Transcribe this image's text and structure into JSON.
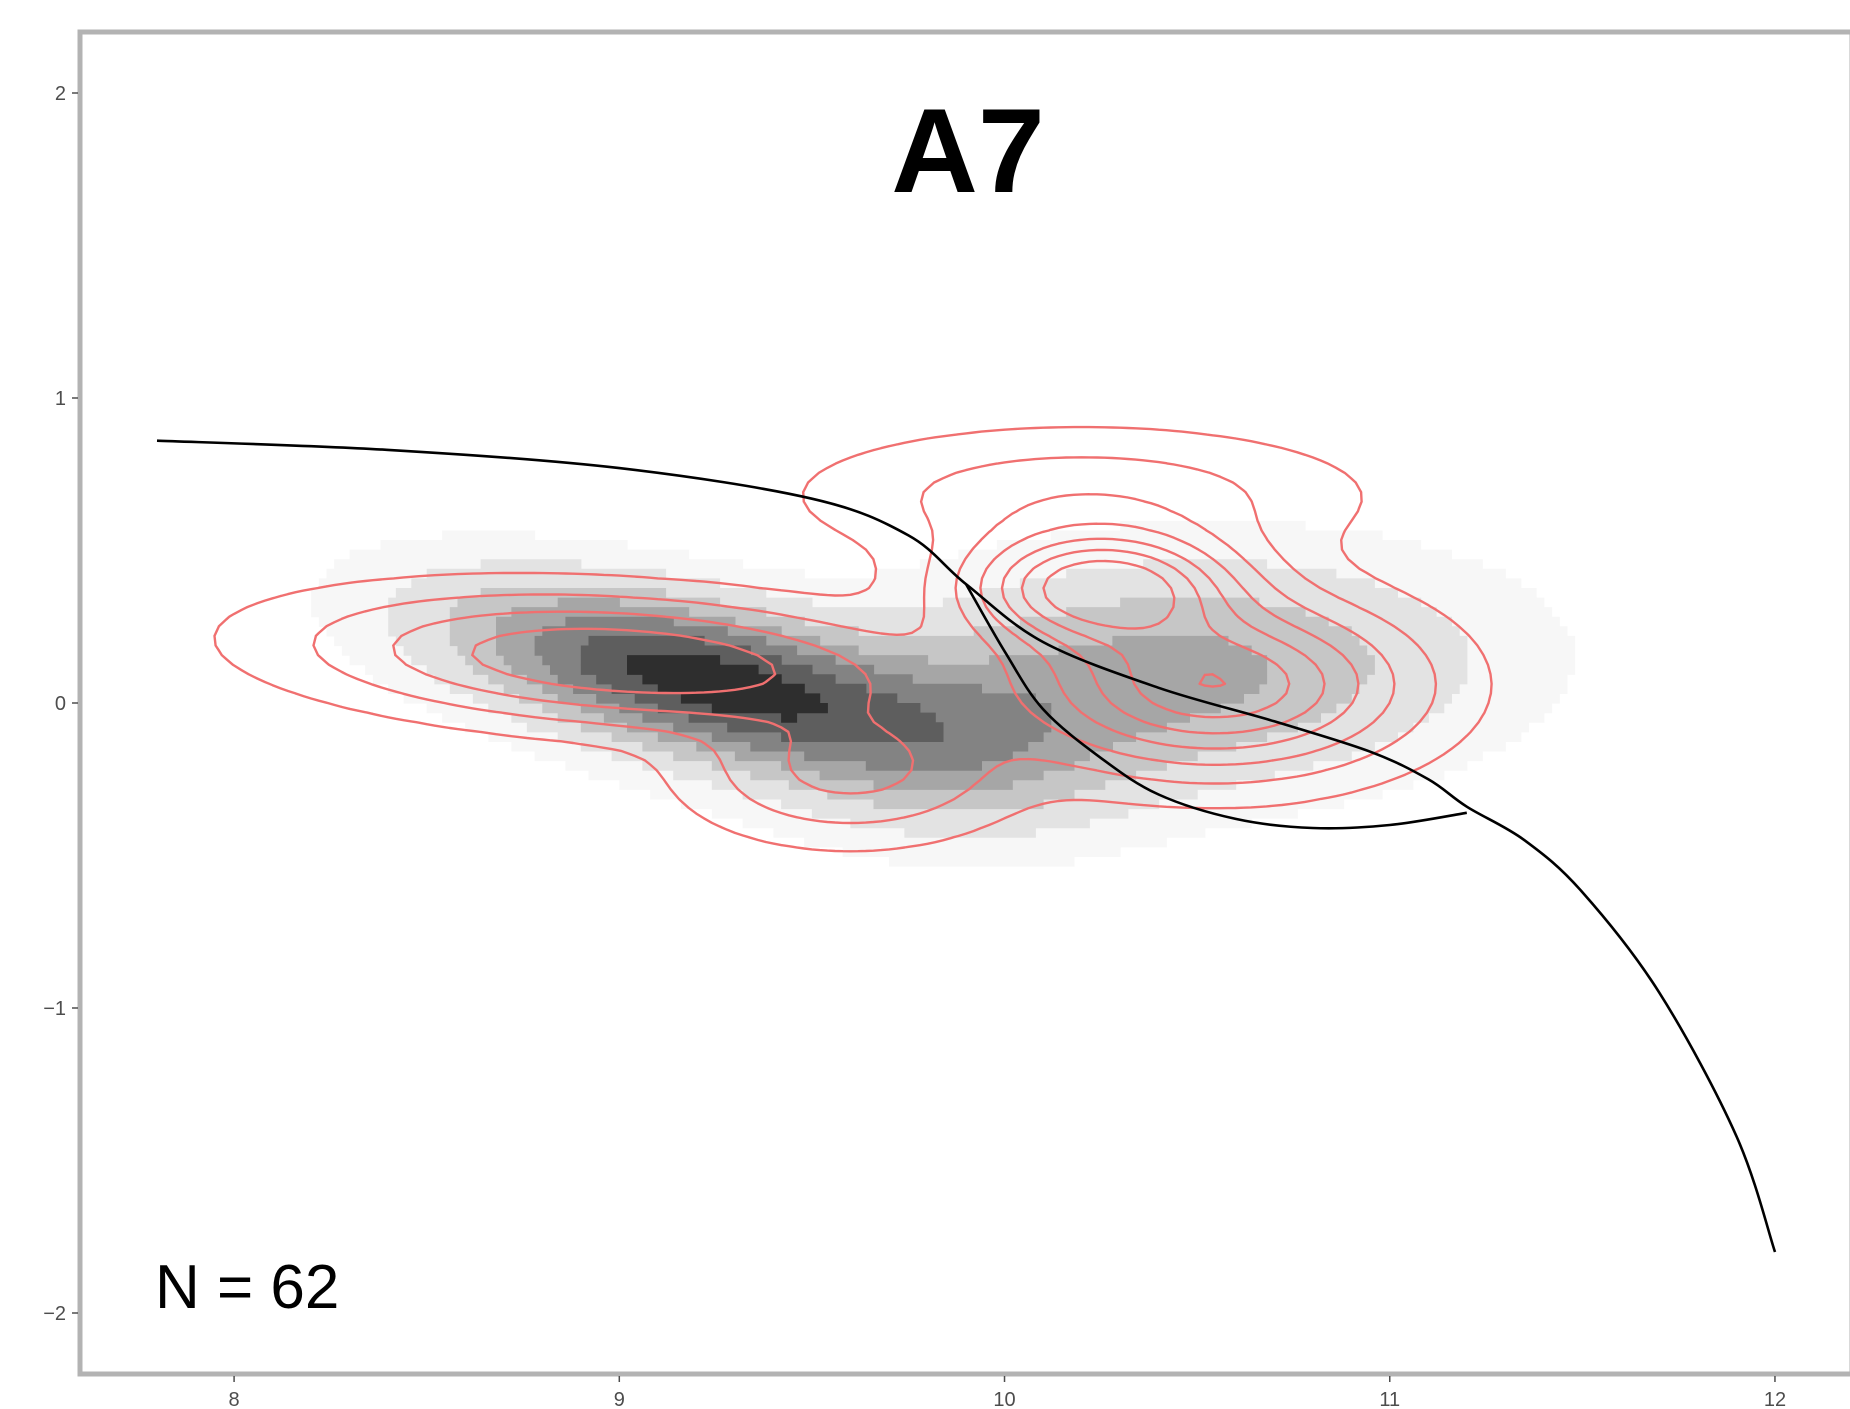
{
  "chart_data": {
    "type": "contour",
    "title": "A7",
    "annotation": "N = 62",
    "xlabel": "",
    "ylabel": "",
    "xlim": [
      7.6,
      12.2
    ],
    "ylim": [
      -2.2,
      2.2
    ],
    "x_ticks": [
      8,
      9,
      10,
      11,
      12
    ],
    "y_ticks": [
      -2,
      -1,
      0,
      1,
      2
    ],
    "x_tick_labels": [
      "8",
      "9",
      "10",
      "11",
      "12"
    ],
    "y_tick_labels": [
      "−2",
      "−1",
      "0",
      "1",
      "2"
    ],
    "grid": false,
    "colors": {
      "contour_line": "#f07070",
      "curve": "#000000",
      "frame": "#b3b3b3",
      "fill_levels": [
        "#f7f7f7",
        "#e3e3e3",
        "#c6c6c6",
        "#a6a6a6",
        "#838383",
        "#5e5e5e",
        "#2e2e2e"
      ]
    },
    "filled_density": {
      "components": [
        {
          "cx": 9.2,
          "cy": 0.08,
          "sx": 0.42,
          "sy": 0.2,
          "rho": -0.55,
          "w": 1.0
        },
        {
          "cx": 10.45,
          "cy": 0.1,
          "sx": 0.5,
          "sy": 0.24,
          "rho": 0.1,
          "w": 0.5
        },
        {
          "cx": 9.9,
          "cy": -0.15,
          "sx": 0.3,
          "sy": 0.2,
          "rho": 0.0,
          "w": 0.28
        }
      ],
      "levels": [
        0.06,
        0.16,
        0.3,
        0.45,
        0.6,
        0.76,
        0.92
      ]
    },
    "line_density": {
      "components": [
        {
          "cx": 10.25,
          "cy": 0.38,
          "sx": 0.22,
          "sy": 0.12,
          "rho": 0.0,
          "w": 1.0
        },
        {
          "cx": 10.55,
          "cy": 0.06,
          "sx": 0.3,
          "sy": 0.17,
          "rho": 0.0,
          "w": 0.85
        },
        {
          "cx": 9.0,
          "cy": 0.14,
          "sx": 0.48,
          "sy": 0.13,
          "rho": -0.25,
          "w": 0.55
        },
        {
          "cx": 9.6,
          "cy": -0.22,
          "sx": 0.25,
          "sy": 0.14,
          "rho": 0.0,
          "w": 0.3
        },
        {
          "cx": 10.2,
          "cy": 0.68,
          "sx": 0.42,
          "sy": 0.13,
          "rho": 0.0,
          "w": 0.22
        }
      ],
      "levels": [
        0.05,
        0.14,
        0.26,
        0.4,
        0.55,
        0.7,
        0.86
      ]
    },
    "curves": [
      {
        "x": [
          7.8,
          8.4,
          9.0,
          9.5,
          9.75,
          9.9,
          10.1,
          10.4,
          10.7,
          10.95,
          11.1,
          11.2,
          11.35,
          11.5,
          11.7,
          11.9,
          12.0
        ],
        "y": [
          0.86,
          0.83,
          0.77,
          0.67,
          0.55,
          0.39,
          0.2,
          0.05,
          -0.06,
          -0.16,
          -0.25,
          -0.34,
          -0.45,
          -0.62,
          -0.95,
          -1.42,
          -1.8
        ]
      },
      {
        "x": [
          9.9,
          10.0,
          10.1,
          10.25,
          10.4,
          10.6,
          10.8,
          11.0,
          11.2
        ],
        "y": [
          0.39,
          0.17,
          -0.02,
          -0.18,
          -0.3,
          -0.38,
          -0.41,
          -0.4,
          -0.36
        ]
      }
    ]
  }
}
